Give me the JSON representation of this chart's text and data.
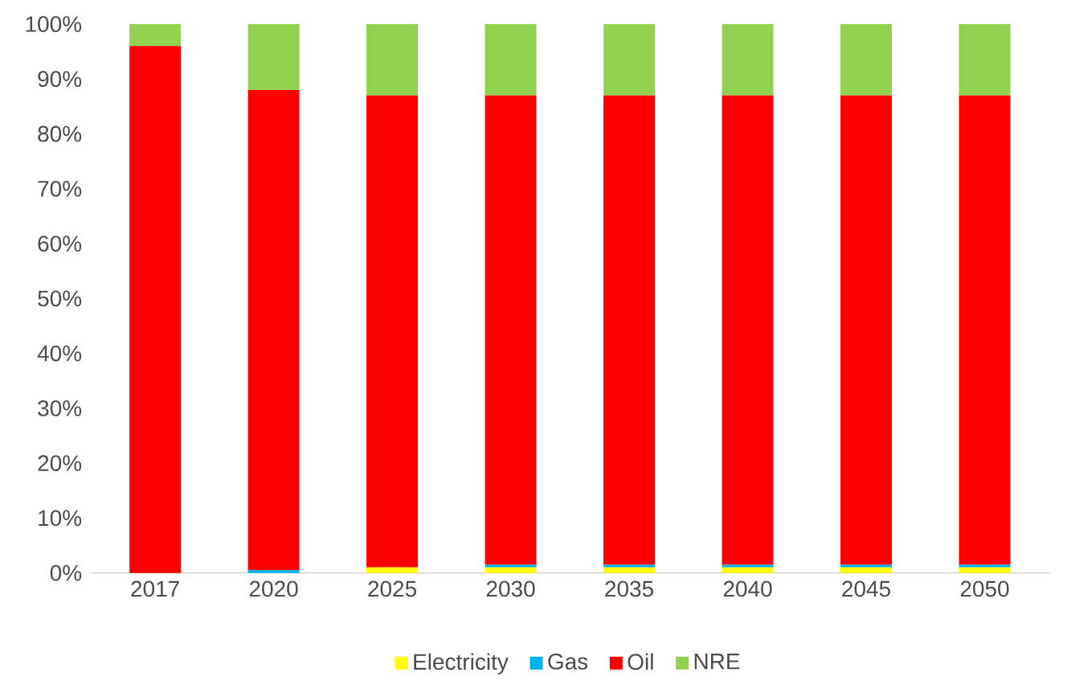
{
  "chart_data": {
    "type": "bar",
    "stacked": true,
    "categories": [
      "2017",
      "2020",
      "2025",
      "2030",
      "2035",
      "2040",
      "2045",
      "2050"
    ],
    "series": [
      {
        "name": "Electricity",
        "color": "#ffff00",
        "values": [
          0,
          0,
          1,
          1,
          1,
          1,
          1,
          1
        ]
      },
      {
        "name": "Gas",
        "color": "#00b0f0",
        "values": [
          0,
          0.5,
          0,
          0.5,
          0.5,
          0.5,
          0.5,
          0.5
        ]
      },
      {
        "name": "Oil",
        "color": "#ff0000",
        "values": [
          96,
          87.5,
          86,
          85.5,
          85.5,
          85.5,
          85.5,
          85.5
        ]
      },
      {
        "name": "NRE",
        "color": "#92d050",
        "values": [
          4,
          12,
          13,
          13,
          13,
          13,
          13,
          13
        ]
      }
    ],
    "ylim": [
      0,
      100
    ],
    "yticks": [
      {
        "value": 0,
        "label": "0%"
      },
      {
        "value": 10,
        "label": "10%"
      },
      {
        "value": 20,
        "label": "20%"
      },
      {
        "value": 30,
        "label": "30%"
      },
      {
        "value": 40,
        "label": "40%"
      },
      {
        "value": 50,
        "label": "50%"
      },
      {
        "value": 60,
        "label": "60%"
      },
      {
        "value": 70,
        "label": "70%"
      },
      {
        "value": 80,
        "label": "80%"
      },
      {
        "value": 90,
        "label": "90%"
      },
      {
        "value": 100,
        "label": "100%"
      }
    ],
    "legend": "bottom"
  }
}
